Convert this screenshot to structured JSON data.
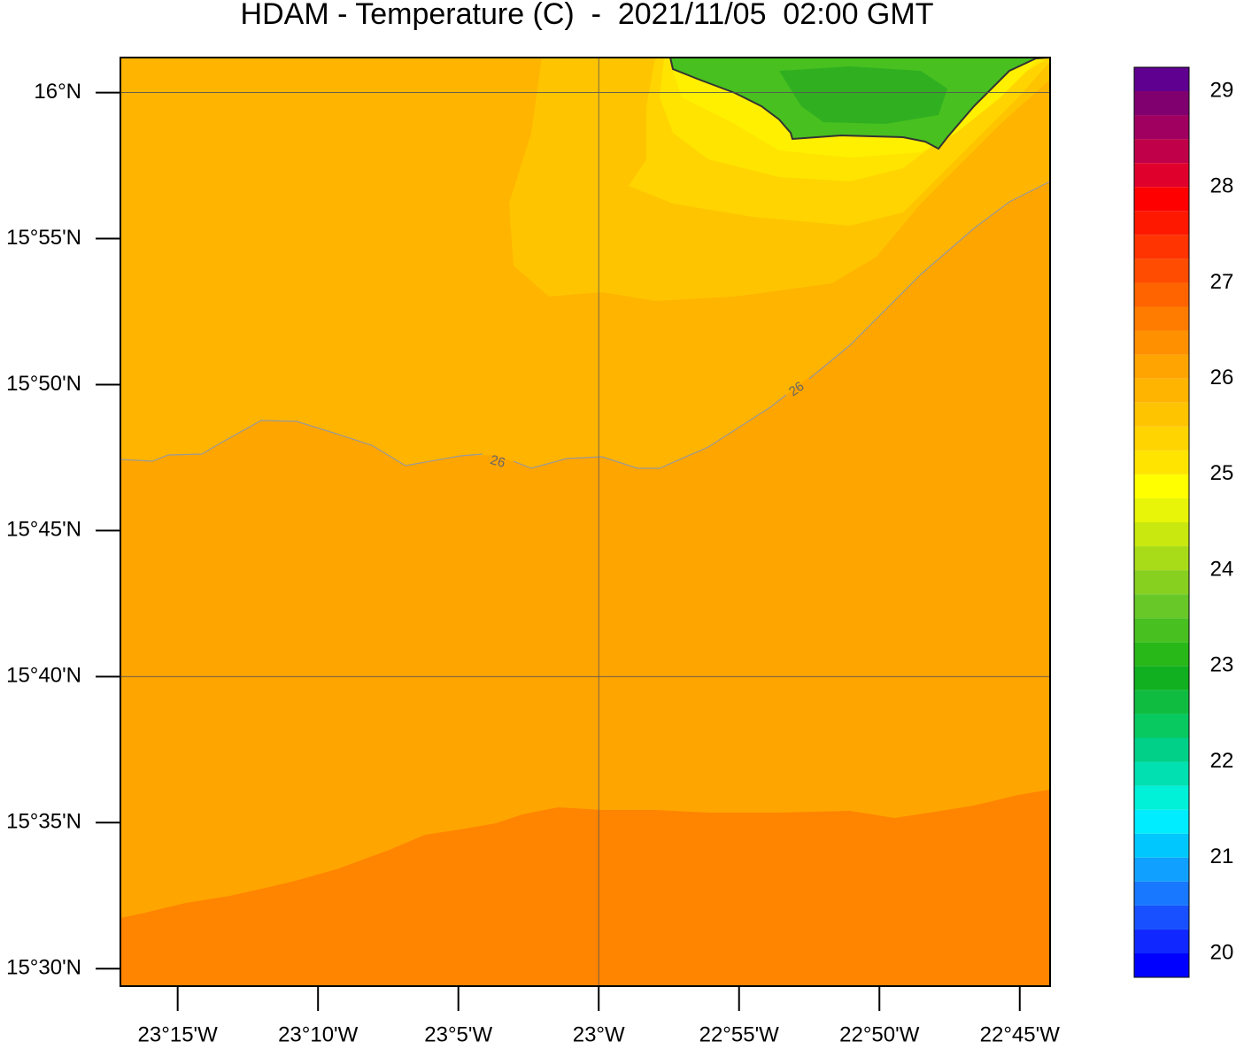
{
  "title": "HDAM - Temperature (C)  -  2021/11/05  02:00 GMT",
  "map": {
    "type": "contour",
    "xlim": [
      -23.284,
      -22.732
    ],
    "ylim": [
      15.49,
      16.02
    ],
    "xticks": [
      {
        "value": -23.25,
        "label": "23°15'W"
      },
      {
        "value": -23.166667,
        "label": "23°10'W"
      },
      {
        "value": -23.083333,
        "label": "23°5'W"
      },
      {
        "value": -23,
        "label": "23°W"
      },
      {
        "value": -22.916667,
        "label": "22°55'W"
      },
      {
        "value": -22.833333,
        "label": "22°50'W"
      },
      {
        "value": -22.75,
        "label": "22°45'W"
      }
    ],
    "yticks": [
      {
        "value": 16,
        "label": "16°N"
      },
      {
        "value": 15.916667,
        "label": "15°55'N"
      },
      {
        "value": 15.833333,
        "label": "15°50'N"
      },
      {
        "value": 15.75,
        "label": "15°45'N"
      },
      {
        "value": 15.666667,
        "label": "15°40'N"
      },
      {
        "value": 15.583333,
        "label": "15°35'N"
      },
      {
        "value": 15.5,
        "label": "15°30'N"
      }
    ],
    "grid": {
      "x": [
        -23
      ],
      "y": [
        16,
        15.666667
      ]
    },
    "contour_labels": [
      {
        "value": 26,
        "label": "26"
      },
      {
        "value": 26,
        "label": "26"
      }
    ]
  },
  "colorbar": {
    "levels": [
      20,
      20.25,
      20.5,
      20.75,
      21,
      21.25,
      21.5,
      21.75,
      22,
      22.25,
      22.5,
      22.75,
      23,
      23.25,
      23.5,
      23.75,
      24,
      24.25,
      24.5,
      24.75,
      25,
      25.25,
      25.5,
      25.75,
      26,
      26.25,
      26.5,
      26.75,
      27,
      27.25,
      27.5,
      27.75,
      28,
      28.25,
      28.5,
      28.75,
      29
    ],
    "colors": [
      "#0000ff",
      "#1028ff",
      "#1850ff",
      "#1878ff",
      "#10a0ff",
      "#00c8ff",
      "#00ecff",
      "#00f0d8",
      "#00e0b0",
      "#00d088",
      "#08c860",
      "#10bc40",
      "#10b020",
      "#28b818",
      "#48c020",
      "#68c828",
      "#88d020",
      "#a8dc18",
      "#c8e810",
      "#e8f408",
      "#ffff00",
      "#ffe400",
      "#ffd400",
      "#ffc400",
      "#ffb400",
      "#ffa400",
      "#ff9000",
      "#ff7c00",
      "#ff6400",
      "#ff4c00",
      "#ff3400",
      "#ff1800",
      "#ff0000",
      "#e0002c",
      "#c00048",
      "#a00060",
      "#800070",
      "#600090"
    ],
    "ticks": [
      20,
      21,
      22,
      23,
      24,
      25,
      26,
      27,
      28,
      29
    ]
  }
}
